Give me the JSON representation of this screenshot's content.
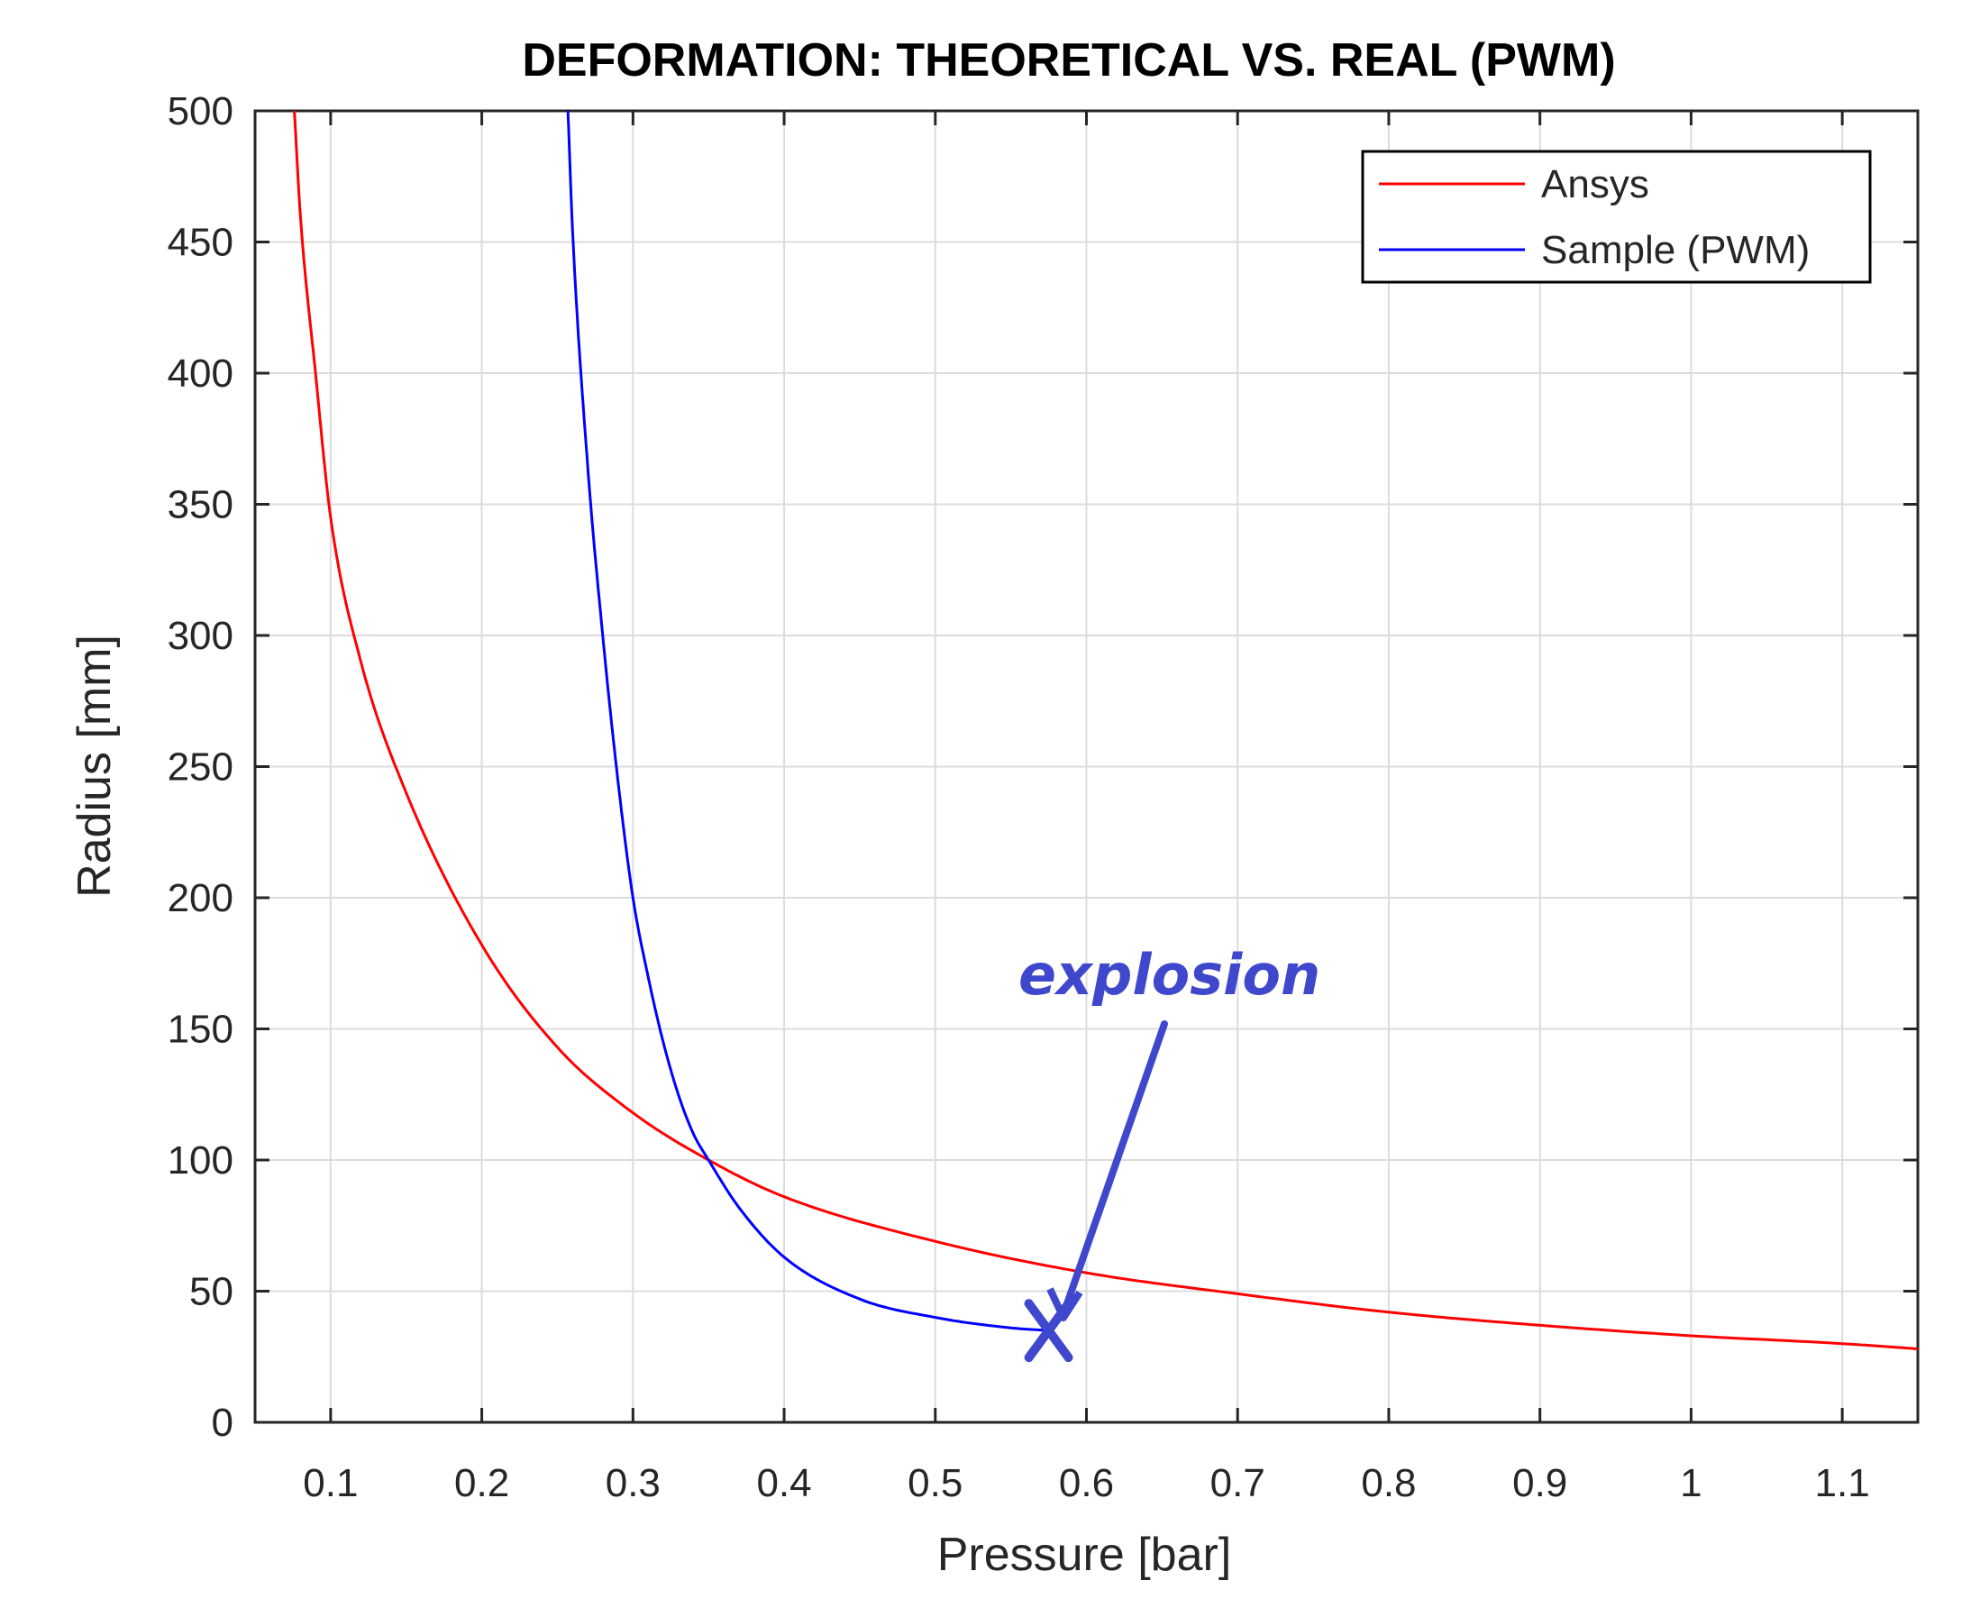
{
  "chart_data": {
    "type": "line",
    "title": "DEFORMATION: THEORETICAL VS. REAL (PWM)",
    "xlabel": "Pressure [bar]",
    "ylabel": "Radius [mm]",
    "xlim": [
      0.05,
      1.15
    ],
    "ylim": [
      0,
      500
    ],
    "xticks": [
      0.1,
      0.2,
      0.3,
      0.4,
      0.5,
      0.6,
      0.7,
      0.8,
      0.9,
      1,
      1.1
    ],
    "xtick_labels": [
      "0.1",
      "0.2",
      "0.3",
      "0.4",
      "0.5",
      "0.6",
      "0.7",
      "0.8",
      "0.9",
      "1",
      "1.1"
    ],
    "yticks": [
      0,
      50,
      100,
      150,
      200,
      250,
      300,
      350,
      400,
      450,
      500
    ],
    "ytick_labels": [
      "0",
      "50",
      "100",
      "150",
      "200",
      "250",
      "300",
      "350",
      "400",
      "450",
      "500"
    ],
    "grid": true,
    "legend_position": "top-right",
    "series": [
      {
        "name": "Ansys",
        "color": "#ff0000",
        "x": [
          0.076,
          0.08,
          0.09,
          0.1,
          0.12,
          0.15,
          0.2,
          0.25,
          0.3,
          0.35,
          0.4,
          0.5,
          0.6,
          0.7,
          0.8,
          0.9,
          1.0,
          1.1,
          1.15
        ],
        "y": [
          500,
          460,
          400,
          345,
          290,
          240,
          182,
          143,
          118,
          100,
          86,
          69,
          57,
          49,
          42,
          37,
          33,
          30,
          28
        ]
      },
      {
        "name": "Sample (PWM)",
        "color": "#0000ff",
        "x": [
          0.257,
          0.26,
          0.27,
          0.28,
          0.29,
          0.3,
          0.31,
          0.32,
          0.33,
          0.34,
          0.35,
          0.37,
          0.4,
          0.45,
          0.5,
          0.55,
          0.575
        ],
        "y": [
          500,
          455,
          365,
          300,
          245,
          200,
          170,
          145,
          125,
          110,
          100,
          82,
          63,
          47,
          40,
          36,
          35
        ]
      }
    ],
    "annotations": [
      {
        "text": "explosion",
        "color": "#3f48cc",
        "target_x": 0.575,
        "target_y": 35,
        "marker": "X"
      }
    ]
  }
}
